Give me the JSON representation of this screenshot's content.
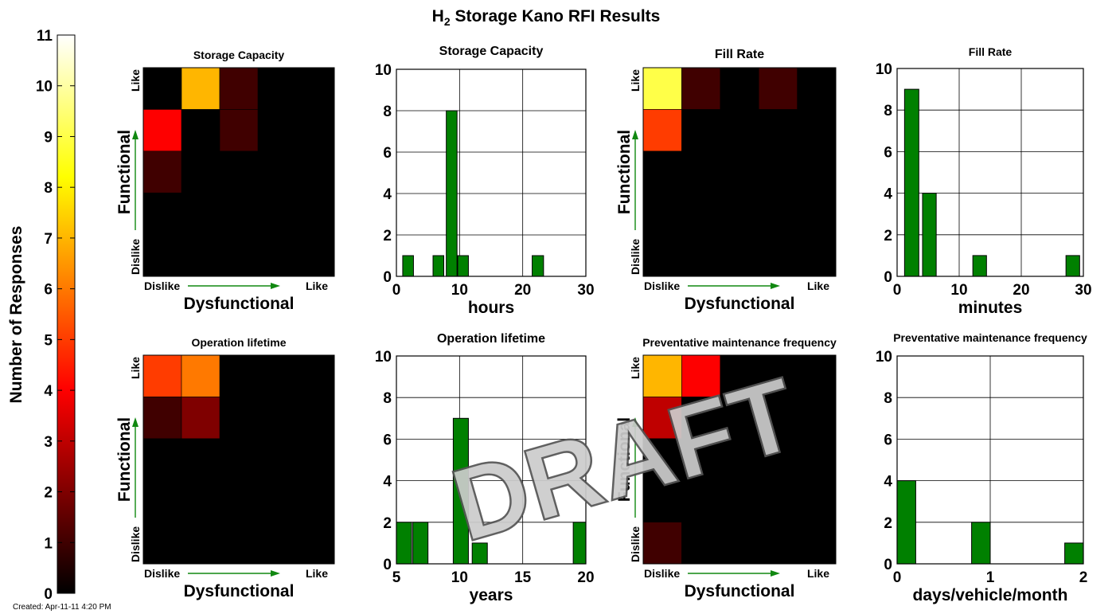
{
  "figure": {
    "title_main": "H",
    "title_sub": "2",
    "title_rest": " Storage Kano RFI Results",
    "created": "Created: Apr-11-11  4:20 PM",
    "watermark": "DRAFT"
  },
  "colorbar": {
    "label": "Number of Responses",
    "min": 0,
    "max": 11,
    "ticks": [
      "0",
      "1",
      "2",
      "3",
      "4",
      "5",
      "6",
      "7",
      "8",
      "9",
      "10",
      "11"
    ],
    "colormap": "hot"
  },
  "chart_data": [
    {
      "id": "heat-storage",
      "type": "heatmap",
      "title": "Storage Capacity",
      "xlabel": "Dysfunctional",
      "ylabel": "Functional",
      "x_start": "Dislike",
      "x_end": "Like",
      "y_start": "Dislike",
      "y_end": "Like",
      "values": [
        [
          0,
          7,
          1,
          0,
          0
        ],
        [
          4,
          0,
          1,
          0,
          0
        ],
        [
          1,
          0,
          0,
          0,
          0
        ],
        [
          0,
          0,
          0,
          0,
          0
        ],
        [
          0,
          0,
          0,
          0,
          0
        ]
      ]
    },
    {
      "id": "hist-storage",
      "type": "bar",
      "title": "Storage Capacity",
      "xlabel": "hours",
      "xlim": [
        0,
        30
      ],
      "ylim": [
        0,
        10
      ],
      "xticks": [
        "0",
        "10",
        "20",
        "30"
      ],
      "yticks": [
        "0",
        "2",
        "4",
        "6",
        "8",
        "10"
      ],
      "bins": [
        [
          1,
          2.7,
          1
        ],
        [
          5.8,
          7.5,
          1
        ],
        [
          7.9,
          9.6,
          8
        ],
        [
          9.7,
          11.4,
          1
        ],
        [
          21.5,
          23.3,
          1
        ]
      ]
    },
    {
      "id": "heat-fill",
      "type": "heatmap",
      "title": "Fill Rate",
      "xlabel": "Dysfunctional",
      "ylabel": "Functional",
      "x_start": "Dislike",
      "x_end": "Like",
      "y_start": "Dislike",
      "y_end": "Like",
      "values": [
        [
          9,
          1,
          0,
          1,
          0
        ],
        [
          5,
          0,
          0,
          0,
          0
        ],
        [
          0,
          0,
          0,
          0,
          0
        ],
        [
          0,
          0,
          0,
          0,
          0
        ],
        [
          0,
          0,
          0,
          0,
          0
        ]
      ]
    },
    {
      "id": "hist-fill",
      "type": "bar",
      "title": "Fill Rate",
      "xlabel": "minutes",
      "xlim": [
        0,
        30
      ],
      "ylim": [
        0,
        10
      ],
      "xticks": [
        "0",
        "10",
        "20",
        "30"
      ],
      "yticks": [
        "0",
        "2",
        "4",
        "6",
        "8",
        "10"
      ],
      "bins": [
        [
          1.2,
          3.5,
          9
        ],
        [
          4.1,
          6.3,
          4
        ],
        [
          12.2,
          14.4,
          1
        ],
        [
          27.2,
          29.4,
          1
        ]
      ]
    },
    {
      "id": "heat-life",
      "type": "heatmap",
      "title": "Operation lifetime",
      "xlabel": "Dysfunctional",
      "ylabel": "Functional",
      "x_start": "Dislike",
      "x_end": "Like",
      "y_start": "Dislike",
      "y_end": "Like",
      "values": [
        [
          5,
          6,
          0,
          0,
          0
        ],
        [
          1,
          2,
          0,
          0,
          0
        ],
        [
          0,
          0,
          0,
          0,
          0
        ],
        [
          0,
          0,
          0,
          0,
          0
        ],
        [
          0,
          0,
          0,
          0,
          0
        ]
      ]
    },
    {
      "id": "hist-life",
      "type": "bar",
      "title": "Operation lifetime",
      "xlabel": "years",
      "xlim": [
        5,
        20
      ],
      "ylim": [
        0,
        10
      ],
      "xticks": [
        "5",
        "10",
        "15",
        "20"
      ],
      "yticks": [
        "0",
        "2",
        "4",
        "6",
        "8",
        "10"
      ],
      "bins": [
        [
          5,
          6.2,
          2
        ],
        [
          6.3,
          7.5,
          2
        ],
        [
          9.5,
          10.7,
          7
        ],
        [
          11,
          12.2,
          1
        ],
        [
          19,
          20,
          2
        ]
      ]
    },
    {
      "id": "heat-maint",
      "type": "heatmap",
      "title": "Preventative maintenance frequency",
      "xlabel": "Dysfunctional",
      "ylabel": "Functional",
      "x_start": "Dislike",
      "x_end": "Like",
      "y_start": "Dislike",
      "y_end": "Like",
      "values": [
        [
          7,
          4,
          0,
          0,
          0
        ],
        [
          3,
          0,
          0,
          0,
          0
        ],
        [
          0,
          0,
          0,
          0,
          0
        ],
        [
          0,
          0,
          0,
          0,
          0
        ],
        [
          1,
          0,
          0,
          0,
          0
        ]
      ]
    },
    {
      "id": "hist-maint",
      "type": "bar",
      "title": "Preventative maintenance frequency",
      "xlabel": "days/vehicle/month",
      "xlim": [
        0,
        2
      ],
      "ylim": [
        0,
        10
      ],
      "xticks": [
        "0",
        "1",
        "2"
      ],
      "yticks": [
        "0",
        "2",
        "4",
        "6",
        "8",
        "10"
      ],
      "bins": [
        [
          0,
          0.2,
          4
        ],
        [
          0.8,
          1.0,
          2
        ],
        [
          1.8,
          2.0,
          1
        ]
      ]
    }
  ]
}
